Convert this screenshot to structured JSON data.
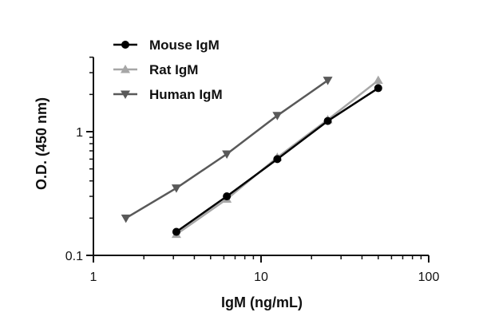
{
  "chart_data": {
    "type": "line",
    "xlabel": "IgM (ng/mL)",
    "ylabel": "O.D. (450 nm)",
    "x_scale": "log",
    "y_scale": "log",
    "xlim": [
      1,
      100
    ],
    "ylim": [
      0.1,
      4
    ],
    "x_ticks": [
      1,
      10,
      100
    ],
    "x_tick_labels": [
      "1",
      "10",
      "100"
    ],
    "y_ticks": [
      0.1,
      1
    ],
    "y_tick_labels": [
      "0.1",
      "1"
    ],
    "grid": false,
    "legend_position": "top-left",
    "series": [
      {
        "name": "Mouse IgM",
        "color": "#000000",
        "marker": "circle",
        "x": [
          3.125,
          6.25,
          12.5,
          25,
          50
        ],
        "y": [
          0.155,
          0.3,
          0.6,
          1.22,
          2.25
        ]
      },
      {
        "name": "Rat IgM",
        "color": "#a6a6a6",
        "marker": "triangle-up",
        "x": [
          3.125,
          6.25,
          12.5,
          25,
          50
        ],
        "y": [
          0.148,
          0.285,
          0.62,
          1.25,
          2.6
        ]
      },
      {
        "name": "Human IgM",
        "color": "#595959",
        "marker": "triangle-down",
        "x": [
          1.5625,
          3.125,
          6.25,
          12.5,
          25
        ],
        "y": [
          0.2,
          0.35,
          0.66,
          1.35,
          2.6
        ]
      }
    ]
  }
}
